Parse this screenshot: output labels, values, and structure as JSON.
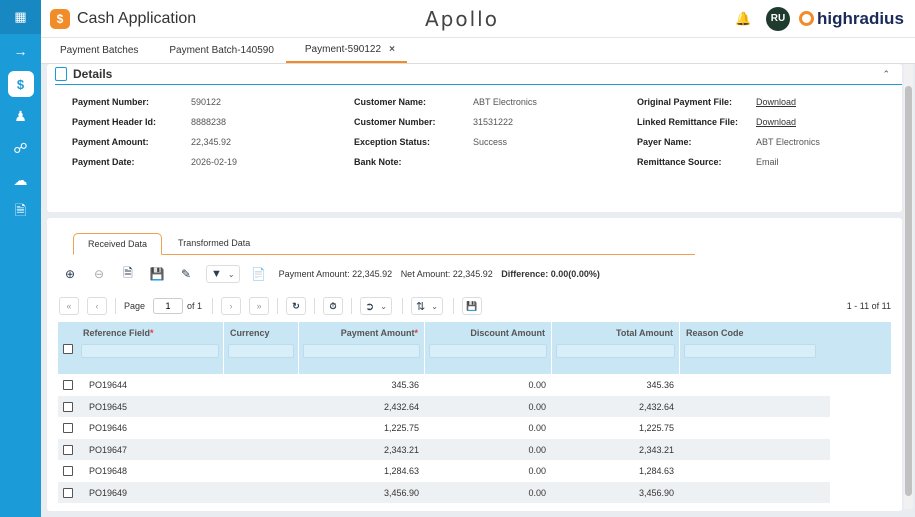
{
  "app": {
    "title": "Cash Application",
    "brand": "Apollo",
    "user_initials": "RU",
    "vendor": "highradius"
  },
  "colors": {
    "rail": "#1c9bd9",
    "accent": "#f28c28",
    "header_row": "#c9e6f5"
  },
  "rail": {
    "icons": [
      "grid-icon",
      "arrow-right-icon",
      "dollar-icon",
      "users-icon",
      "link-icon",
      "cloud-upload-icon",
      "document-icon"
    ]
  },
  "tabs": [
    {
      "label": "Payment Batches"
    },
    {
      "label": "Payment Batch-140590"
    },
    {
      "label": "Payment-590122",
      "close": "×"
    }
  ],
  "details": {
    "title": "Details",
    "col1": [
      {
        "label": "Payment Number:",
        "value": "590122"
      },
      {
        "label": "Payment Header Id:",
        "value": "8888238"
      },
      {
        "label": "Payment Amount:",
        "value": "22,345.92"
      },
      {
        "label": "Payment Date:",
        "value": "2026-02-19"
      }
    ],
    "col2": [
      {
        "label": "Customer Name:",
        "value": "ABT Electronics"
      },
      {
        "label": "Customer Number:",
        "value": "31531222"
      },
      {
        "label": "Exception Status:",
        "value": "Success"
      },
      {
        "label": "Bank Note:",
        "value": ""
      }
    ],
    "col3": [
      {
        "label": "Original Payment File:",
        "value": "Download"
      },
      {
        "label": "Linked Remittance File:",
        "value": "Download"
      },
      {
        "label": "Payer Name:",
        "value": "ABT Electronics"
      },
      {
        "label": "Remittance Source:",
        "value": "Email"
      }
    ]
  },
  "subtabs": [
    {
      "label": "Received Data"
    },
    {
      "label": "Transformed Data"
    }
  ],
  "summary": {
    "payment_amount": "Payment Amount: 22,345.92",
    "net_amount": "Net Amount: 22,345.92",
    "difference": "Difference: 0.00(0.00%)"
  },
  "pager": {
    "page_label": "Page",
    "page_value": "1",
    "of_label": "of 1",
    "range": "1 - 11 of 11"
  },
  "columns": [
    {
      "label": "Reference Field",
      "required": "*"
    },
    {
      "label": "Currency",
      "required": ""
    },
    {
      "label": "Payment Amount",
      "required": "*"
    },
    {
      "label": "Discount Amount",
      "required": ""
    },
    {
      "label": "Total Amount",
      "required": ""
    },
    {
      "label": "Reason Code",
      "required": ""
    }
  ],
  "rows": [
    {
      "ref": "PO19644",
      "currency": "",
      "payment": "345.36",
      "discount": "0.00",
      "total": "345.36",
      "reason": ""
    },
    {
      "ref": "PO19645",
      "currency": "",
      "payment": "2,432.64",
      "discount": "0.00",
      "total": "2,432.64",
      "reason": ""
    },
    {
      "ref": "PO19646",
      "currency": "",
      "payment": "1,225.75",
      "discount": "0.00",
      "total": "1,225.75",
      "reason": ""
    },
    {
      "ref": "PO19647",
      "currency": "",
      "payment": "2,343.21",
      "discount": "0.00",
      "total": "2,343.21",
      "reason": ""
    },
    {
      "ref": "PO19648",
      "currency": "",
      "payment": "1,284.63",
      "discount": "0.00",
      "total": "1,284.63",
      "reason": ""
    },
    {
      "ref": "PO19649",
      "currency": "",
      "payment": "3,456.90",
      "discount": "0.00",
      "total": "3,456.90",
      "reason": ""
    }
  ]
}
